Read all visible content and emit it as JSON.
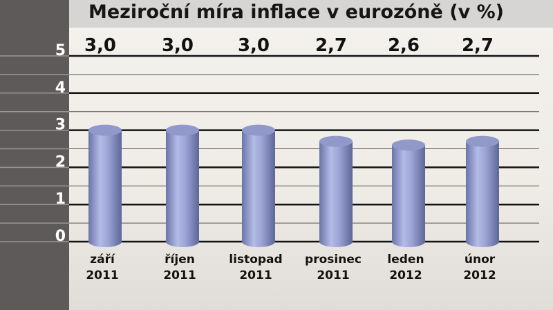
{
  "chart_data": {
    "type": "bar",
    "title": "Meziroční míra inflace v eurozóně (v %)",
    "categories": [
      [
        "září",
        "2011"
      ],
      [
        "říjen",
        "2011"
      ],
      [
        "listopad",
        "2011"
      ],
      [
        "prosinec",
        "2011"
      ],
      [
        "leden",
        "2012"
      ],
      [
        "únor",
        "2012"
      ]
    ],
    "values": [
      3.0,
      3.0,
      3.0,
      2.7,
      2.6,
      2.7
    ],
    "value_labels": [
      "3,0",
      "3,0",
      "3,0",
      "2,7",
      "2,6",
      "2,7"
    ],
    "yticks": [
      "0",
      "1",
      "2",
      "3",
      "4",
      "5"
    ],
    "ylim": [
      0,
      5
    ],
    "xlabel": "",
    "ylabel": "",
    "grid": true,
    "bar_color": "#8a93c4"
  }
}
